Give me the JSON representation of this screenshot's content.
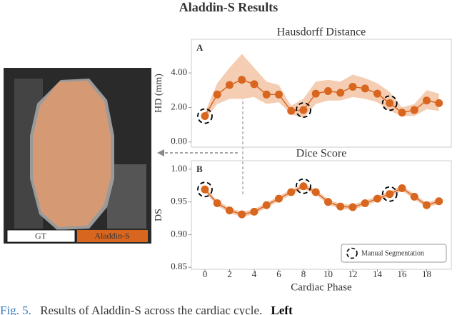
{
  "title": "Aladdin-S Results",
  "image": {
    "labels": [
      "GT",
      "Aladdin-S"
    ]
  },
  "legend_label": "Manual Segmentation",
  "caption": {
    "label": "Fig. 5.",
    "text": "Results of Aladdin-S across the cardiac cycle.",
    "bold": "Left"
  },
  "chart_data": [
    {
      "type": "line",
      "panel_label": "A",
      "title": "Hausdorff Distance",
      "ylabel": "HD (mm)",
      "x": [
        0,
        1,
        2,
        3,
        4,
        5,
        6,
        7,
        8,
        9,
        10,
        11,
        12,
        13,
        14,
        15,
        16,
        17,
        18,
        19
      ],
      "values": [
        1.5,
        2.75,
        3.3,
        3.6,
        3.35,
        2.75,
        2.75,
        1.8,
        1.85,
        2.8,
        2.95,
        2.85,
        3.2,
        3.1,
        2.8,
        2.25,
        1.7,
        1.85,
        2.4,
        2.25
      ],
      "band_upper": [
        1.7,
        3.4,
        4.3,
        5.1,
        4.3,
        3.5,
        3.3,
        2.1,
        2.5,
        3.5,
        3.6,
        3.5,
        3.9,
        3.7,
        3.4,
        2.9,
        2.0,
        2.2,
        3.0,
        2.8
      ],
      "band_lower": [
        1.3,
        2.2,
        2.5,
        2.5,
        2.6,
        2.2,
        2.3,
        1.6,
        1.4,
        2.2,
        2.4,
        2.4,
        2.6,
        2.5,
        2.3,
        1.8,
        1.5,
        1.5,
        1.9,
        1.8
      ],
      "highlight_x": [
        0,
        8,
        15
      ],
      "color": "#d9661f",
      "band_color": "#f4cdb3",
      "xlim": [
        -1.1,
        20
      ],
      "ylim": [
        -0.3,
        5.95
      ],
      "yticks": [
        {
          "value": 0,
          "label": "0.00"
        },
        {
          "value": 2,
          "label": "2.00"
        },
        {
          "value": 4,
          "label": "4.00"
        }
      ]
    },
    {
      "type": "line",
      "panel_label": "B",
      "title": "Dice Score",
      "ylabel": "DS",
      "xlabel": "Cardiac Phase",
      "x": [
        0,
        1,
        2,
        3,
        4,
        5,
        6,
        7,
        8,
        9,
        10,
        11,
        12,
        13,
        14,
        15,
        16,
        17,
        18,
        19
      ],
      "values": [
        0.969,
        0.948,
        0.937,
        0.931,
        0.935,
        0.945,
        0.955,
        0.965,
        0.974,
        0.965,
        0.95,
        0.943,
        0.942,
        0.948,
        0.955,
        0.962,
        0.971,
        0.958,
        0.945,
        0.951
      ],
      "band_upper": [
        0.973,
        0.952,
        0.941,
        0.935,
        0.939,
        0.949,
        0.959,
        0.969,
        0.978,
        0.969,
        0.954,
        0.947,
        0.946,
        0.952,
        0.959,
        0.966,
        0.975,
        0.962,
        0.949,
        0.955
      ],
      "band_lower": [
        0.965,
        0.944,
        0.933,
        0.927,
        0.931,
        0.941,
        0.951,
        0.961,
        0.97,
        0.961,
        0.946,
        0.939,
        0.938,
        0.944,
        0.951,
        0.958,
        0.967,
        0.954,
        0.941,
        0.947
      ],
      "highlight_x": [
        0,
        8,
        15
      ],
      "color": "#d9661f",
      "band_color": "#f4cdb3",
      "xlim": [
        -1.1,
        20
      ],
      "ylim": [
        0.847,
        1.013
      ],
      "xticks": [
        0,
        2,
        4,
        6,
        8,
        10,
        12,
        14,
        16,
        18
      ],
      "yticks": [
        0.85,
        {
          "value": 0.9,
          "label": "0.90"
        },
        0.95,
        {
          "value": 1,
          "label": "1.00"
        }
      ]
    }
  ]
}
